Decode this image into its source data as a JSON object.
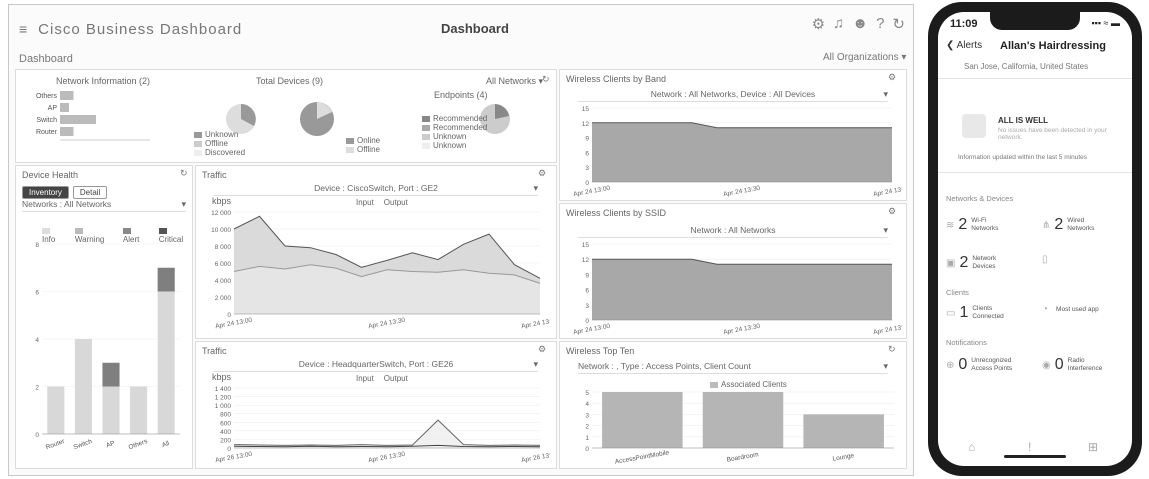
{
  "app": {
    "brand": "Cisco Business Dashboard",
    "title": "Dashboard",
    "subtitle": "Dashboard",
    "org_selector": "All Organizations ▾"
  },
  "network_info": {
    "title": "Network Information (2)",
    "chart_data": {
      "type": "bar",
      "orientation": "horizontal",
      "categories": [
        "Others",
        "AP",
        "Switch",
        "Router"
      ],
      "values": [
        3,
        2,
        8,
        3
      ],
      "xlim": [
        0,
        20
      ]
    }
  },
  "total_devices": {
    "title": "Total Devices (9)",
    "filter": "All Networks ▾",
    "legend_a": [
      "Unknown",
      "Offline",
      "Discovered"
    ],
    "legend_b": [
      "Online",
      "Offline"
    ],
    "legend_c": [
      "Recommended",
      "Recommended",
      "Unknown",
      "Unknown"
    ]
  },
  "endpoints": {
    "title": "Endpoints (4)"
  },
  "inventory": {
    "title": "Device Health",
    "tabs": [
      "Inventory",
      "Detail"
    ],
    "filter": "Networks : All Networks",
    "legend": [
      "Info",
      "Warning",
      "Alert",
      "Critical"
    ],
    "chart_data": {
      "type": "bar",
      "stacked": true,
      "categories": [
        "Router",
        "Switch",
        "AP",
        "Others",
        "All"
      ],
      "series": [
        {
          "name": "Info",
          "values": [
            2,
            4,
            2,
            2,
            6
          ]
        },
        {
          "name": "Alert",
          "values": [
            0,
            0,
            1,
            0,
            1
          ]
        }
      ],
      "ylim": [
        0,
        8
      ]
    }
  },
  "traffic1": {
    "title": "Traffic",
    "filter": "Device : CiscoSwitch, Port : GE2",
    "unit": "kbps",
    "legend": [
      "Input",
      "Output"
    ],
    "yticks": [
      "12 000",
      "10 000",
      "8 000",
      "6 000",
      "4 000",
      "2 000",
      "0"
    ],
    "xticks": [
      "Apr 24 13:00",
      "Apr 24 13:30",
      "Apr 24 13:45"
    ],
    "chart_data": {
      "type": "area",
      "series": [
        {
          "name": "Input",
          "values": [
            10000,
            11500,
            8000,
            7800,
            7000,
            5500,
            6300,
            7200,
            6400,
            8200,
            9400,
            5800,
            4200
          ]
        },
        {
          "name": "Output",
          "values": [
            5000,
            5600,
            5300,
            5800,
            5400,
            4400,
            5200,
            5000,
            4900,
            5200,
            4800,
            4600,
            3600
          ]
        }
      ],
      "ylim": [
        0,
        12000
      ]
    }
  },
  "traffic2": {
    "title": "Traffic",
    "filter": "Device : HeadquarterSwitch, Port : GE26",
    "unit": "kbps",
    "legend": [
      "Input",
      "Output"
    ],
    "yticks": [
      "1 400",
      "1 200",
      "1 000",
      "800",
      "600",
      "400",
      "200",
      "0"
    ],
    "xticks": [
      "Apr 26 13:00",
      "Apr 26 13:30",
      "Apr 26 13:45"
    ],
    "chart_data": {
      "type": "line",
      "series": [
        {
          "name": "Input",
          "values": [
            80,
            70,
            60,
            70,
            60,
            80,
            60,
            70,
            650,
            80,
            60,
            70,
            60
          ]
        },
        {
          "name": "Output",
          "values": [
            40,
            35,
            30,
            40,
            30,
            35,
            30,
            40,
            60,
            35,
            30,
            35,
            30
          ]
        }
      ],
      "ylim": [
        0,
        1400
      ]
    }
  },
  "wireless_band": {
    "title": "Wireless Clients by Band",
    "filter": "Network : All Networks, Device : All Devices",
    "yticks": [
      "15",
      "12",
      "9",
      "6",
      "3",
      "0"
    ],
    "xticks": [
      "Apr 24 13:00",
      "Apr 24 13:30",
      "Apr 24 13:45"
    ],
    "chart_data": {
      "type": "area",
      "series": [
        {
          "name": "Clients",
          "values": [
            12,
            12,
            12,
            12,
            12,
            11,
            11,
            11,
            11,
            11,
            11,
            11,
            11
          ]
        }
      ],
      "ylim": [
        0,
        15
      ]
    }
  },
  "wireless_ssid": {
    "title": "Wireless Clients by SSID",
    "filter": "Network : All Networks",
    "yticks": [
      "15",
      "12",
      "9",
      "6",
      "3",
      "0"
    ],
    "xticks": [
      "Apr 24 13:00",
      "Apr 24 13:30",
      "Apr 24 13:45"
    ],
    "chart_data": {
      "type": "area",
      "series": [
        {
          "name": "Clients",
          "values": [
            12,
            12,
            12,
            12,
            12,
            11,
            11,
            11,
            11,
            11,
            11,
            11,
            11
          ]
        }
      ],
      "ylim": [
        0,
        15
      ]
    }
  },
  "wireless_top": {
    "title": "Wireless Top Ten",
    "filter": "Network : , Type : Access Points, Client Count",
    "legend": "Associated Clients",
    "yticks": [
      "5",
      "4",
      "3",
      "2",
      "1",
      "0"
    ],
    "chart_data": {
      "type": "bar",
      "categories": [
        "AccessPointMobile",
        "Boardroom",
        "Lounge"
      ],
      "values": [
        5,
        5,
        3
      ],
      "ylim": [
        0,
        5
      ]
    }
  },
  "phone": {
    "time": "11:09",
    "status": "▪▪▪ ≈ ▬",
    "back": "❮ Alerts",
    "title": "Allan's Hairdressing",
    "location": "San Jose, California, United States",
    "all_well": "ALL IS WELL",
    "all_well_sub": "No issues have been detected in your network.",
    "note": "Information updated within the last 5 minutes",
    "sections": [
      "Networks & Devices",
      "Clients",
      "Notifications"
    ],
    "stats": [
      {
        "num": "2",
        "label": "Wi-Fi Networks"
      },
      {
        "num": "2",
        "label": "Wired Networks"
      },
      {
        "num": "2",
        "label": "Network Devices"
      },
      {
        "num": "",
        "label": ""
      },
      {
        "num": "1",
        "label": "Clients Connected"
      },
      {
        "num": "",
        "label": "Most used app"
      },
      {
        "num": "0",
        "label": "Unrecognized Access Points"
      },
      {
        "num": "0",
        "label": "Radio Interference"
      }
    ]
  },
  "colors": {
    "fill": "#c9c9c9",
    "line": "#555555",
    "light": "#e3e3e3",
    "dark": "#8a8a8a"
  }
}
